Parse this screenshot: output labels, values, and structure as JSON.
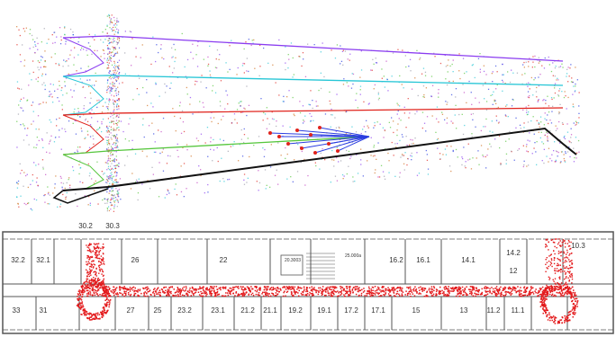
{
  "trajectory_view": {
    "colors": {
      "purple": "#8a3cf0",
      "cyan": "#27c6d6",
      "red": "#e0231c",
      "green": "#55c63c",
      "blue": "#2a3de0",
      "black": "#111111",
      "point_gray": "#9a9aa8"
    }
  },
  "floor_plan": {
    "top_labels": [
      "30.2",
      "30.3"
    ],
    "room_labels_upper": [
      "32.2",
      "32.1",
      "26",
      "22",
      "25.000a",
      "16.2",
      "16.1",
      "14.1",
      "14.2",
      "12",
      "10.3"
    ],
    "room_labels_lower": [
      "33",
      "31",
      "27",
      "25",
      "23.2",
      "23.1",
      "21.2",
      "21.1",
      "19.2",
      "19.1",
      "17.2",
      "17.1",
      "15",
      "13",
      "11.2",
      "11.1"
    ],
    "small_labels": [
      "20.3003"
    ],
    "colors": {
      "walls": "#555555",
      "path": "#e31a1c"
    }
  }
}
